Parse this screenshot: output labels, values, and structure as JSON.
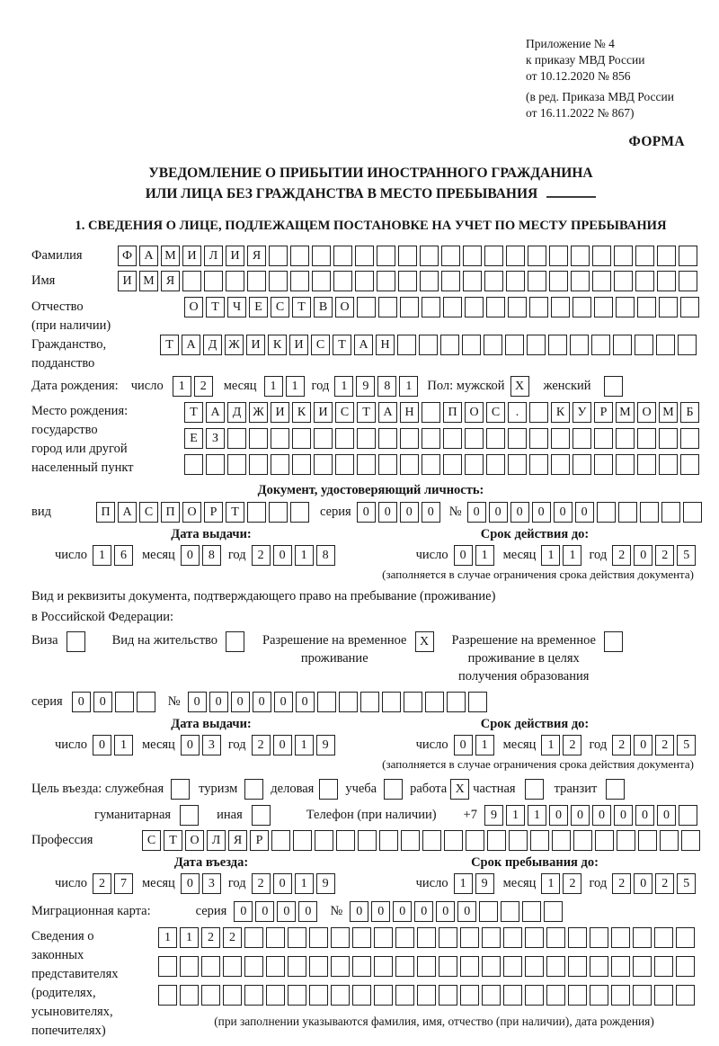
{
  "header": {
    "line1": "Приложение № 4",
    "line2": "к приказу МВД России",
    "line3": "от 10.12.2020 № 856",
    "line4": "(в ред. Приказа МВД России",
    "line5": "от 16.11.2022 № 867)",
    "forma": "ФОРМА"
  },
  "title": {
    "line1": "УВЕДОМЛЕНИЕ О ПРИБЫТИИ ИНОСТРАННОГО ГРАЖДАНИНА",
    "line2": "ИЛИ ЛИЦА БЕЗ ГРАЖДАНСТВА В МЕСТО ПРЕБЫВАНИЯ"
  },
  "section1_heading": "1. СВЕДЕНИЯ О ЛИЦЕ, ПОДЛЕЖАЩЕМ ПОСТАНОВКЕ НА УЧЕТ ПО МЕСТУ ПРЕБЫВАНИЯ",
  "labels": {
    "familiya": "Фамилия",
    "imya": "Имя",
    "otchestvo": "Отчество",
    "pri_nalichii": "(при наличии)",
    "grazhdanstvo": "Гражданство,",
    "poddanstvo": "подданство",
    "data_rozhdeniya": "Дата рождения:",
    "chislo": "число",
    "mesyac": "месяц",
    "god": "год",
    "pol_muzhskoy": "Пол: мужской",
    "zhenskiy": "женский",
    "mesto_rozhdeniya": "Место рождения:",
    "gosudarstvo": "государство",
    "gorod": "город или другой",
    "naspunkt": "населенный пункт",
    "doc_heading": "Документ, удостоверяющий личность:",
    "vid": "вид",
    "seriya": "серия",
    "nomer": "№",
    "data_vydachi": "Дата выдачи:",
    "srok_deystviya": "Срок действия до:",
    "note_ogranichenie": "(заполняется в случае ограничения срока действия документа)",
    "rekvizity_line1": "Вид и реквизиты документа, подтверждающего право на пребывание (проживание)",
    "rekvizity_line2": "в Российской Федерации:",
    "viza": "Виза",
    "vid_na_zhitelstvo": "Вид на жительство",
    "rvp_line1": "Разрешение на временное",
    "rvp_line2": "проживание",
    "rvp_edu_line1": "Разрешение на временное",
    "rvp_edu_line2": "проживание в целях",
    "rvp_edu_line3": "получения образования",
    "tsel_sluzhebnaya": "Цель въезда: служебная",
    "turizm": "туризм",
    "delovaya": "деловая",
    "ucheba": "учеба",
    "rabota": "работа",
    "chastnaya": "частная",
    "tranzit": "транзит",
    "gumanitarnaya": "гуманитарная",
    "inaya": "иная",
    "telefon": "Телефон (при наличии)",
    "plus7": "+7",
    "professiya": "Профессия",
    "data_vezda": "Дата въезда:",
    "srok_prebyvaniya": "Срок пребывания до:",
    "migr_karta": "Миграционная карта:",
    "svedeniya": [
      "Сведения о",
      "законных",
      "представителях",
      "(родителях,",
      "усыновителях,",
      "попечителях)"
    ],
    "footer_note": "(при заполнении указываются фамилия, имя, отчество (при наличии), дата рождения)"
  },
  "cells": {
    "familiya": {
      "chars": "ФАМИЛИЯ",
      "len": 27
    },
    "imya": {
      "chars": "ИМЯ",
      "len": 27
    },
    "otchestvo": {
      "chars": "ОТЧЕСТВО",
      "len": 24
    },
    "grazhdanstvo": {
      "chars": "ТАДЖИКИСТАН",
      "len": 25
    },
    "birth_day": {
      "chars": "12",
      "len": 2
    },
    "birth_month": {
      "chars": "11",
      "len": 2
    },
    "birth_year": {
      "chars": "1981",
      "len": 4
    },
    "sex_male": {
      "chars": "X",
      "len": 1
    },
    "sex_female": {
      "chars": "",
      "len": 1
    },
    "birthplace_row1": {
      "chars": "ТАДЖИКИСТАН ПОС. КУРМОМБ",
      "len": 24
    },
    "birthplace_row2": {
      "chars": "ЕЗ",
      "len": 24
    },
    "birthplace_row3": {
      "chars": "",
      "len": 24
    },
    "doc_vid": {
      "chars": "ПАСПОРТ",
      "len": 10
    },
    "doc_seriya": {
      "chars": "0000",
      "len": 4
    },
    "doc_nomer": {
      "chars": "000000",
      "len": 11
    },
    "doc_issue_day": {
      "chars": "16",
      "len": 2
    },
    "doc_issue_month": {
      "chars": "08",
      "len": 2
    },
    "doc_issue_year": {
      "chars": "2018",
      "len": 4
    },
    "doc_valid_day": {
      "chars": "01",
      "len": 2
    },
    "doc_valid_month": {
      "chars": "11",
      "len": 2
    },
    "doc_valid_year": {
      "chars": "2025",
      "len": 4
    },
    "cb_viza": {
      "chars": "",
      "len": 1
    },
    "cb_vnz": {
      "chars": "",
      "len": 1
    },
    "cb_rvp": {
      "chars": "X",
      "len": 1
    },
    "cb_rvp_edu": {
      "chars": "",
      "len": 1
    },
    "permit_seriya": {
      "chars": "00",
      "len": 4
    },
    "permit_nomer": {
      "chars": "000000",
      "len": 14
    },
    "permit_issue_day": {
      "chars": "01",
      "len": 2
    },
    "permit_issue_month": {
      "chars": "03",
      "len": 2
    },
    "permit_issue_year": {
      "chars": "2019",
      "len": 4
    },
    "permit_valid_day": {
      "chars": "01",
      "len": 2
    },
    "permit_valid_month": {
      "chars": "12",
      "len": 2
    },
    "permit_valid_year": {
      "chars": "2025",
      "len": 4
    },
    "cb_sluzhebnaya": {
      "chars": "",
      "len": 1
    },
    "cb_turizm": {
      "chars": "",
      "len": 1
    },
    "cb_delovaya": {
      "chars": "",
      "len": 1
    },
    "cb_ucheba": {
      "chars": "",
      "len": 1
    },
    "cb_rabota": {
      "chars": "X",
      "len": 1
    },
    "cb_chastnaya": {
      "chars": "",
      "len": 1
    },
    "cb_tranzit": {
      "chars": "",
      "len": 1
    },
    "cb_gumanitarnaya": {
      "chars": "",
      "len": 1
    },
    "cb_inaya": {
      "chars": "",
      "len": 1
    },
    "phone": {
      "chars": "911000000",
      "len": 10
    },
    "professiya": {
      "chars": "СТОЛЯР",
      "len": 26
    },
    "entry_day": {
      "chars": "27",
      "len": 2
    },
    "entry_month": {
      "chars": "03",
      "len": 2
    },
    "entry_year": {
      "chars": "2019",
      "len": 4
    },
    "stay_day": {
      "chars": "19",
      "len": 2
    },
    "stay_month": {
      "chars": "12",
      "len": 2
    },
    "stay_year": {
      "chars": "2025",
      "len": 4
    },
    "migr_seriya": {
      "chars": "0000",
      "len": 4
    },
    "migr_nomer": {
      "chars": "000000",
      "len": 10
    },
    "reps_row1": {
      "chars": "1122",
      "len": 25
    },
    "reps_row2": {
      "chars": "",
      "len": 25
    },
    "reps_row3": {
      "chars": "",
      "len": 25
    }
  }
}
